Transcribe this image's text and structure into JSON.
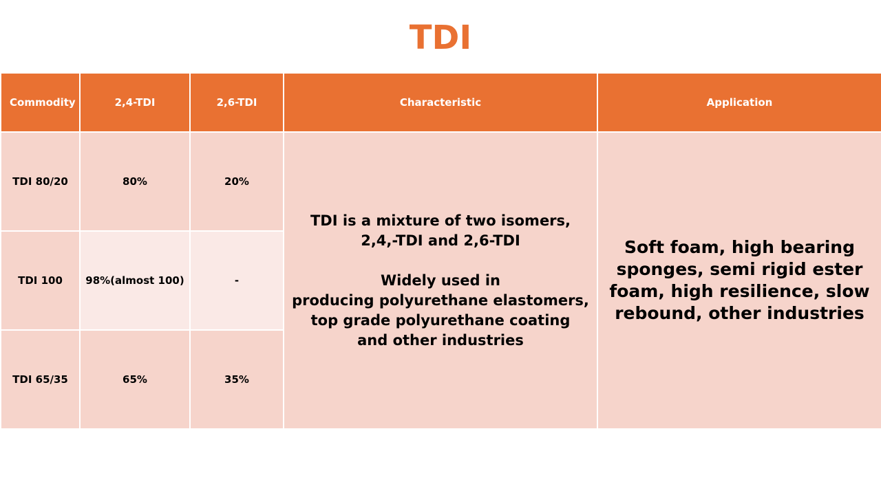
{
  "title": "TDI",
  "colors": {
    "accent": "#E97132",
    "header_text": "#FFFFFF",
    "cell_dark": "#F6D4CB",
    "cell_light": "#FAE9E6"
  },
  "table": {
    "headers": [
      "Commodity",
      "2,4-TDI",
      "2,6-TDI",
      "Characteristic",
      "Application"
    ],
    "rows": [
      {
        "commodity": "TDI 80/20",
        "tdi24": "80%",
        "tdi26": "20%"
      },
      {
        "commodity": "TDI 100",
        "tdi24": "98%(almost 100)",
        "tdi26": "-"
      },
      {
        "commodity": "TDI 65/35",
        "tdi24": "65%",
        "tdi26": "35%"
      }
    ],
    "characteristic": {
      "line1": "TDI is a mixture of two isomers,",
      "line2": "2,4,-TDI and 2,6-TDI",
      "line3": "Widely used in",
      "line4": "producing polyurethane elastomers,",
      "line5": "top grade polyurethane coating",
      "line6": "and other industries"
    },
    "application": "Soft foam, high bearing sponges, semi rigid ester foam, high resilience, slow rebound, other industries"
  }
}
